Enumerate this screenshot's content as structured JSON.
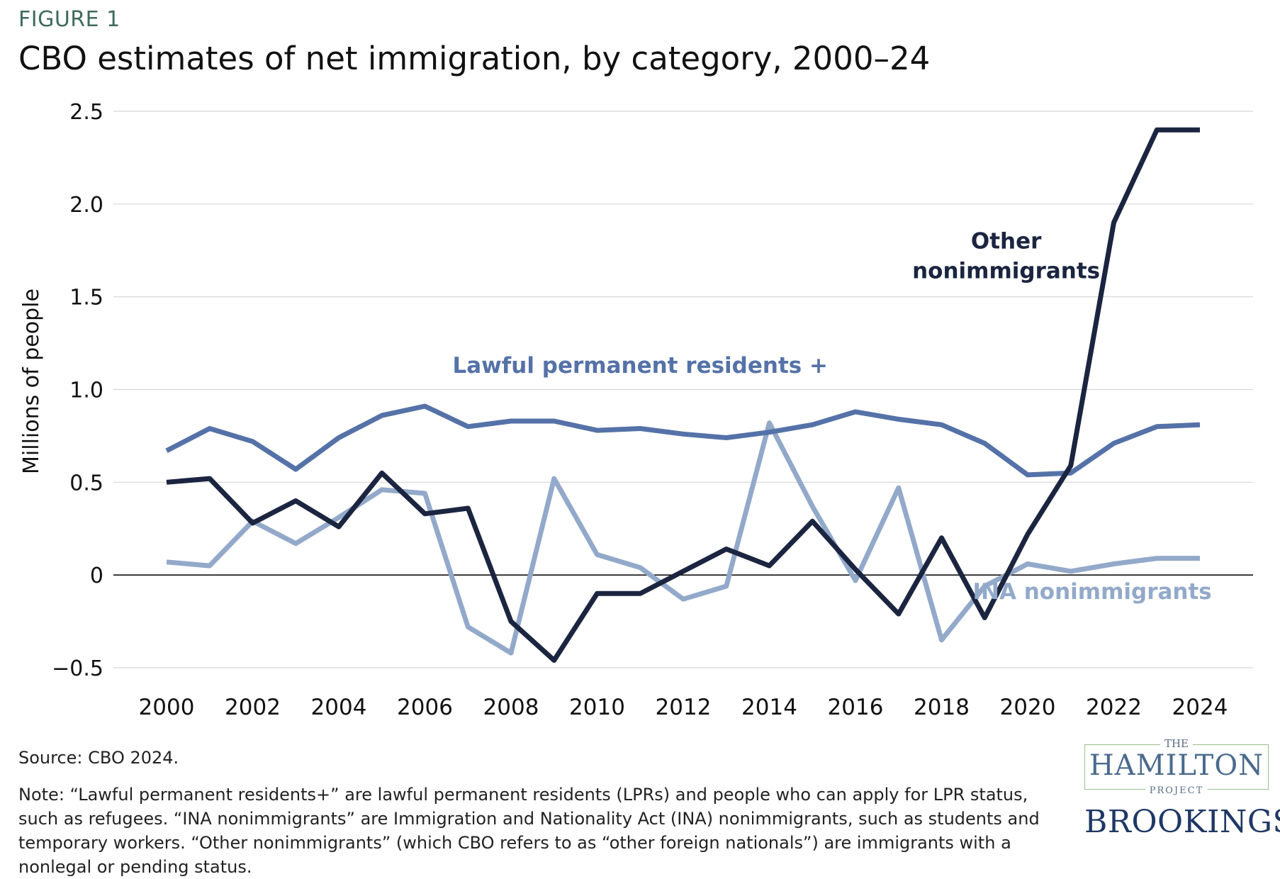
{
  "figure_label": "FIGURE 1",
  "footer": {
    "source": "Source: CBO 2024.",
    "note": "Note: “Lawful permanent residents+” are lawful permanent residents (LPRs) and people who can apply for LPR status, such as refugees. “INA nonimmigrants” are Immigration and Nationality Act (INA) nonimmigrants, such as students and temporary workers. “Other nonimmigrants” (which CBO refers to as “other foreign nationals”) are immigrants with a nonlegal or pending status."
  },
  "logos": {
    "hamilton_the": "THE",
    "hamilton_name": "HAMILTON",
    "hamilton_project": "PROJECT",
    "brookings": "BROOKINGS"
  },
  "chart_data": {
    "type": "line",
    "title": "CBO estimates of net immigration, by category, 2000–24",
    "xlabel": "",
    "ylabel": "Millions of people",
    "x": [
      2000,
      2001,
      2002,
      2003,
      2004,
      2005,
      2006,
      2007,
      2008,
      2009,
      2010,
      2011,
      2012,
      2013,
      2014,
      2015,
      2016,
      2017,
      2018,
      2019,
      2020,
      2021,
      2022,
      2023,
      2024
    ],
    "x_ticks": [
      2000,
      2002,
      2004,
      2006,
      2008,
      2010,
      2012,
      2014,
      2016,
      2018,
      2020,
      2022,
      2024
    ],
    "x_tick_labels": [
      "2000",
      "2002",
      "2004",
      "2006",
      "2008",
      "2010",
      "2012",
      "2014",
      "2016",
      "2018",
      "2020",
      "2022",
      "2024"
    ],
    "ylim": [
      -0.5,
      2.5
    ],
    "y_ticks": [
      -0.5,
      0,
      0.5,
      1.0,
      1.5,
      2.0,
      2.5
    ],
    "y_tick_labels": [
      "−0.5",
      "0",
      "0.5",
      "1.0",
      "1.5",
      "2.0",
      "2.5"
    ],
    "grid": true,
    "series": [
      {
        "name": "Lawful permanent residents +",
        "color": "#5572a8",
        "values": [
          0.67,
          0.79,
          0.72,
          0.57,
          0.74,
          0.86,
          0.91,
          0.8,
          0.83,
          0.83,
          0.78,
          0.79,
          0.76,
          0.74,
          0.77,
          0.81,
          0.88,
          0.84,
          0.81,
          0.71,
          0.54,
          0.55,
          0.71,
          0.8,
          0.81
        ]
      },
      {
        "name": "INA nonimmigrants",
        "color": "#93a9ca",
        "values": [
          0.07,
          0.05,
          0.29,
          0.17,
          0.31,
          0.46,
          0.44,
          -0.28,
          -0.42,
          0.52,
          0.11,
          0.04,
          -0.13,
          -0.06,
          0.82,
          0.37,
          -0.03,
          0.47,
          -0.35,
          -0.06,
          0.06,
          0.02,
          0.06,
          0.09,
          0.09
        ]
      },
      {
        "name": "Other nonimmigrants",
        "color": "#1b2540",
        "values": [
          0.5,
          0.52,
          0.28,
          0.4,
          0.26,
          0.55,
          0.33,
          0.36,
          -0.25,
          -0.46,
          -0.1,
          -0.1,
          0.02,
          0.14,
          0.05,
          0.29,
          0.03,
          -0.21,
          0.2,
          -0.23,
          0.22,
          0.59,
          1.9,
          2.4,
          2.4
        ]
      }
    ],
    "series_labels": [
      {
        "lines": [
          "Lawful permanent residents +"
        ],
        "color": "#5572a8",
        "anchor": "middle",
        "x": 2011.0,
        "y": 1.09
      },
      {
        "lines": [
          "Other",
          "nonimmigrants"
        ],
        "color": "#1b2540",
        "anchor": "middle",
        "x": 2019.5,
        "y": 1.76
      },
      {
        "lines": [
          "INA nonimmigrants"
        ],
        "color": "#93a9ca",
        "anchor": "middle",
        "x": 2021.5,
        "y": -0.13
      }
    ]
  }
}
